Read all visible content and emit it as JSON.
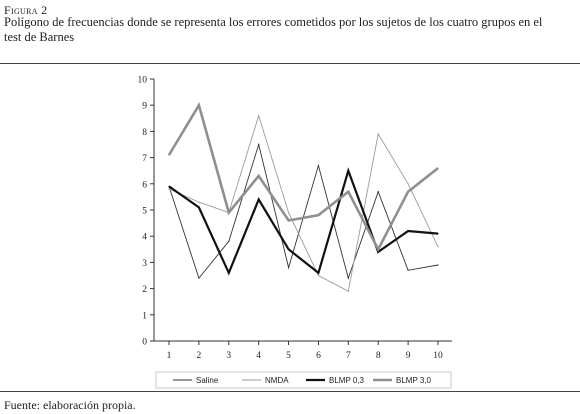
{
  "figure": {
    "label": "Figura 2",
    "caption": "Polígono de frecuencias donde se representa los errores cometidos por los sujetos de los cuatro grupos en el test de Barnes",
    "source": "Fuente: elaboración propia."
  },
  "chart_data": {
    "type": "line",
    "title": "",
    "xlabel": "",
    "ylabel": "",
    "x": [
      1,
      2,
      3,
      4,
      5,
      6,
      7,
      8,
      9,
      10
    ],
    "ylim": [
      0,
      10
    ],
    "yticks": [
      0,
      1,
      2,
      3,
      4,
      5,
      6,
      7,
      8,
      9,
      10
    ],
    "grid": false,
    "legend_position": "bottom",
    "series": [
      {
        "name": "Saline",
        "color": "#333333",
        "width": 0.9,
        "values": [
          5.9,
          2.4,
          3.8,
          7.5,
          2.8,
          6.7,
          2.4,
          5.7,
          2.7,
          2.9
        ]
      },
      {
        "name": "NMDA",
        "color": "#9a9a9a",
        "width": 0.9,
        "values": [
          5.8,
          5.3,
          4.9,
          8.6,
          4.9,
          2.5,
          1.9,
          7.9,
          6.0,
          3.6
        ]
      },
      {
        "name": "BLMP 0,3",
        "color": "#111111",
        "width": 2.2,
        "values": [
          5.9,
          5.1,
          2.6,
          5.4,
          3.5,
          2.6,
          6.5,
          3.4,
          4.2,
          4.1
        ]
      },
      {
        "name": "BLMP 3,0",
        "color": "#8f8f8f",
        "width": 2.6,
        "values": [
          7.1,
          9.0,
          4.9,
          6.3,
          4.6,
          4.8,
          5.7,
          3.5,
          5.7,
          6.6
        ]
      }
    ]
  }
}
